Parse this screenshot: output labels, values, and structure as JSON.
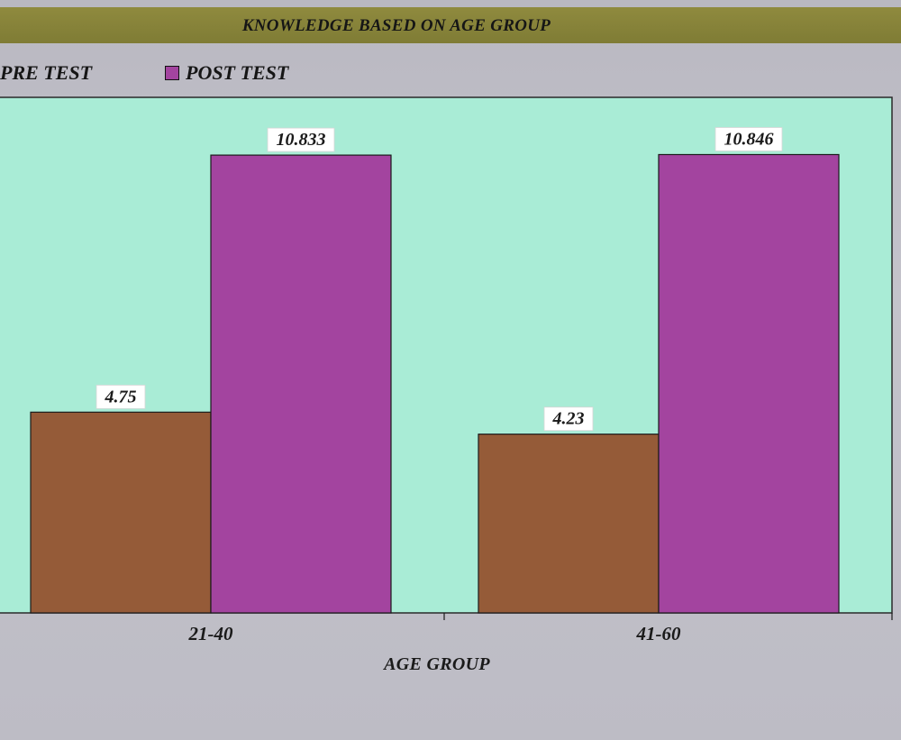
{
  "colors": {
    "title_bar": "#857f3a",
    "plot_background": "#a9ecd6",
    "pre_test": "#955b38",
    "post_test": "#a3449f",
    "page_background": "#c2c2ca"
  },
  "chart_data": {
    "type": "bar",
    "title": "KNOWLEDGE BASED ON AGE GROUP",
    "xlabel": "AGE GROUP",
    "ylabel": "",
    "categories": [
      "21-40",
      "41-60"
    ],
    "series": [
      {
        "name": "PRE TEST",
        "values": [
          4.75,
          4.23
        ],
        "labels": [
          "4.75",
          "4.23"
        ],
        "color": "#955b38"
      },
      {
        "name": "POST TEST",
        "values": [
          10.833,
          10.846
        ],
        "labels": [
          "10.833",
          "10.846"
        ],
        "color": "#a3449f"
      }
    ],
    "ylim": [
      0,
      12.2
    ],
    "grid": false,
    "legend_position": "top-left"
  }
}
